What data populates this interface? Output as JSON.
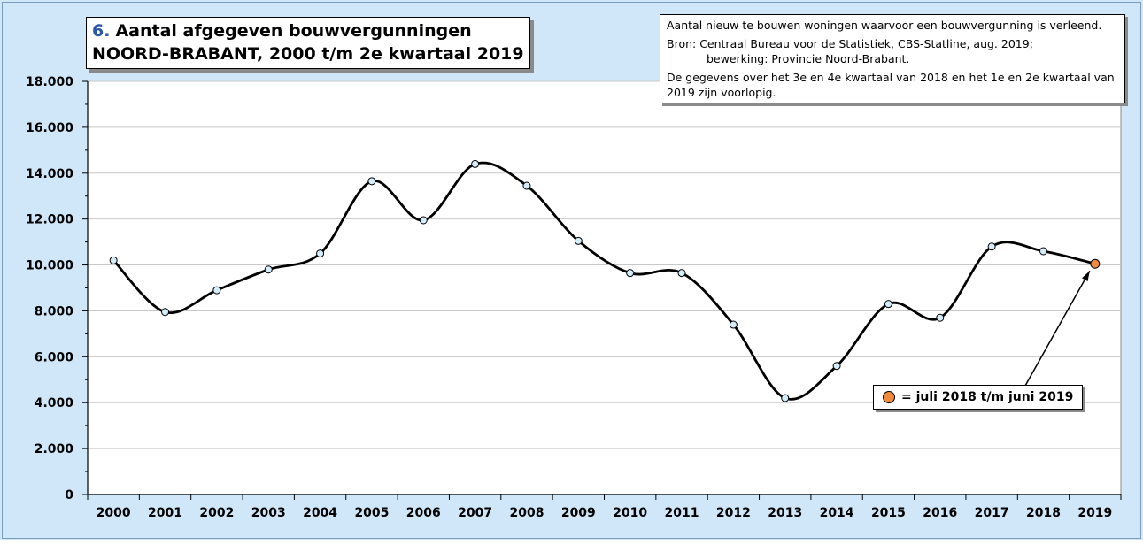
{
  "chart_data": {
    "type": "line",
    "title_number": "6.",
    "title_line1": "Aantal afgegeven bouwvergunningen",
    "title_line2": "NOORD-BRABANT, 2000 t/m 2e kwartaal 2019",
    "categories": [
      "2000",
      "2001",
      "2002",
      "2003",
      "2004",
      "2005",
      "2006",
      "2007",
      "2008",
      "2009",
      "2010",
      "2011",
      "2012",
      "2013",
      "2014",
      "2015",
      "2016",
      "2017",
      "2018",
      "2019"
    ],
    "values": [
      10200,
      7950,
      8900,
      9800,
      10500,
      13650,
      11950,
      14400,
      13450,
      11050,
      9650,
      9650,
      7400,
      4200,
      5600,
      8300,
      7700,
      10800,
      10600,
      10050
    ],
    "y_ticks": [
      "0",
      "2.000",
      "4.000",
      "6.000",
      "8.000",
      "10.000",
      "12.000",
      "14.000",
      "16.000",
      "18.000"
    ],
    "ylim": [
      0,
      18000
    ],
    "grid": true,
    "legend_position": "bottom-right",
    "colors": {
      "frame_background": "#cfe7f9",
      "plot_background": "#ffffff",
      "line": "#000000",
      "marker_fill": "#d5ecfb",
      "highlight_marker": "#f08a3c",
      "gridline": "#c8c8c8"
    },
    "notes": {
      "line1": "Aantal nieuw te bouwen woningen waarvoor een bouwvergunning is verleend.",
      "source_line1": "Bron: Centraal Bureau voor de Statistiek, CBS-Statline, aug. 2019;",
      "source_line2": "bewerking: Provincie Noord-Brabant.",
      "provisional": "De gegevens over het 3e en 4e kwartaal van 2018 en het 1e en 2e kwartaal van 2019 zijn voorlopig."
    },
    "legend_label": "= juli 2018 t/m juni 2019",
    "highlighted_category": "2019"
  }
}
